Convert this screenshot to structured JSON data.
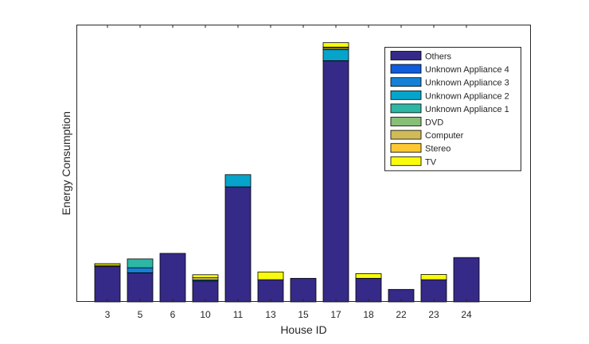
{
  "chart_data": {
    "type": "bar",
    "stacked": true,
    "title": "",
    "xlabel": "House ID",
    "ylabel": "Energy Consumption",
    "categories": [
      "3",
      "5",
      "6",
      "10",
      "11",
      "13",
      "15",
      "17",
      "18",
      "22",
      "23",
      "24"
    ],
    "ylim": [
      0,
      100
    ],
    "y_ticks_shown": false,
    "grid": false,
    "legend_position": "top-right",
    "series": [
      {
        "name": "Others",
        "color": "#352a87",
        "values": [
          12.8,
          10.5,
          17.5,
          7.5,
          41.5,
          8.0,
          8.5,
          87.0,
          8.5,
          4.5,
          8.0,
          16.0
        ]
      },
      {
        "name": "Unknown Appliance 4",
        "color": "#0f5cdd",
        "values": [
          0,
          0,
          0,
          0,
          0,
          0,
          0,
          0,
          0,
          0,
          0,
          0
        ]
      },
      {
        "name": "Unknown Appliance 3",
        "color": "#1481d6",
        "values": [
          0,
          1.8,
          0,
          0,
          0,
          0,
          0,
          0,
          0,
          0,
          0,
          0
        ]
      },
      {
        "name": "Unknown Appliance 2",
        "color": "#06a4ca",
        "values": [
          0,
          0,
          0,
          0.4,
          4.4,
          0,
          0,
          4.0,
          0,
          0,
          0,
          0
        ]
      },
      {
        "name": "Unknown Appliance 1",
        "color": "#2eb7a4",
        "values": [
          0,
          3.2,
          0,
          0,
          0,
          0,
          0,
          0,
          0,
          0,
          0,
          0
        ]
      },
      {
        "name": "DVD",
        "color": "#87bf77",
        "values": [
          0,
          0,
          0,
          0,
          0,
          0,
          0,
          0,
          0,
          0,
          0,
          0
        ]
      },
      {
        "name": "Computer",
        "color": "#d1bb59",
        "values": [
          0,
          0,
          0,
          0.8,
          0,
          0,
          0,
          0.5,
          0,
          0,
          0,
          0
        ]
      },
      {
        "name": "Stereo",
        "color": "#fec832",
        "values": [
          0.4,
          0,
          0,
          0,
          0,
          0,
          0,
          0.4,
          0,
          0,
          0,
          0
        ]
      },
      {
        "name": "TV",
        "color": "#f9fb0e",
        "values": [
          0.6,
          0,
          0,
          1.1,
          0,
          2.8,
          0,
          1.6,
          1.7,
          0,
          1.9,
          0
        ]
      }
    ]
  }
}
